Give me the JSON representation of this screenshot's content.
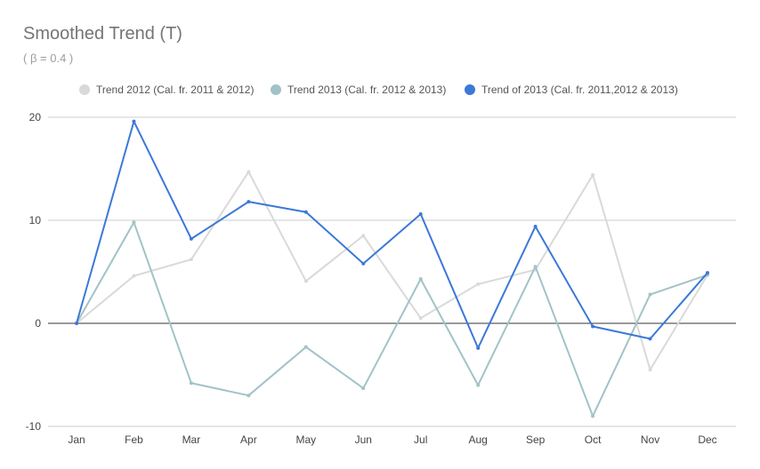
{
  "chart_data": {
    "type": "line",
    "title": "Smoothed Trend (T)",
    "subtitle": "( β = 0.4 )",
    "xlabel": "",
    "ylabel": "",
    "categories": [
      "Jan",
      "Feb",
      "Mar",
      "Apr",
      "May",
      "Jun",
      "Jul",
      "Aug",
      "Sep",
      "Oct",
      "Nov",
      "Dec"
    ],
    "ylim": [
      -10,
      20
    ],
    "yticks": [
      -10,
      0,
      10,
      20
    ],
    "grid": true,
    "legend_position": "top",
    "series": [
      {
        "name": "Trend 2012 (Cal. fr. 2011 & 2012)",
        "color": "#d9d9d9",
        "values": [
          0,
          4.6,
          6.2,
          14.7,
          4.1,
          8.5,
          0.5,
          3.8,
          5.2,
          14.4,
          -4.5,
          4.7
        ]
      },
      {
        "name": "Trend 2013 (Cal. fr. 2012 & 2013)",
        "color": "#a1c3c7",
        "values": [
          0,
          9.8,
          -5.8,
          -7.0,
          -2.3,
          -6.3,
          4.3,
          -6.0,
          5.5,
          -9.0,
          2.8,
          4.7
        ]
      },
      {
        "name": "Trend of 2013 (Cal. fr. 2011,2012 & 2013)",
        "color": "#3c78d8",
        "values": [
          0,
          19.6,
          8.2,
          11.8,
          10.8,
          5.8,
          10.6,
          -2.4,
          9.4,
          -0.3,
          -1.5,
          4.9
        ]
      }
    ]
  }
}
